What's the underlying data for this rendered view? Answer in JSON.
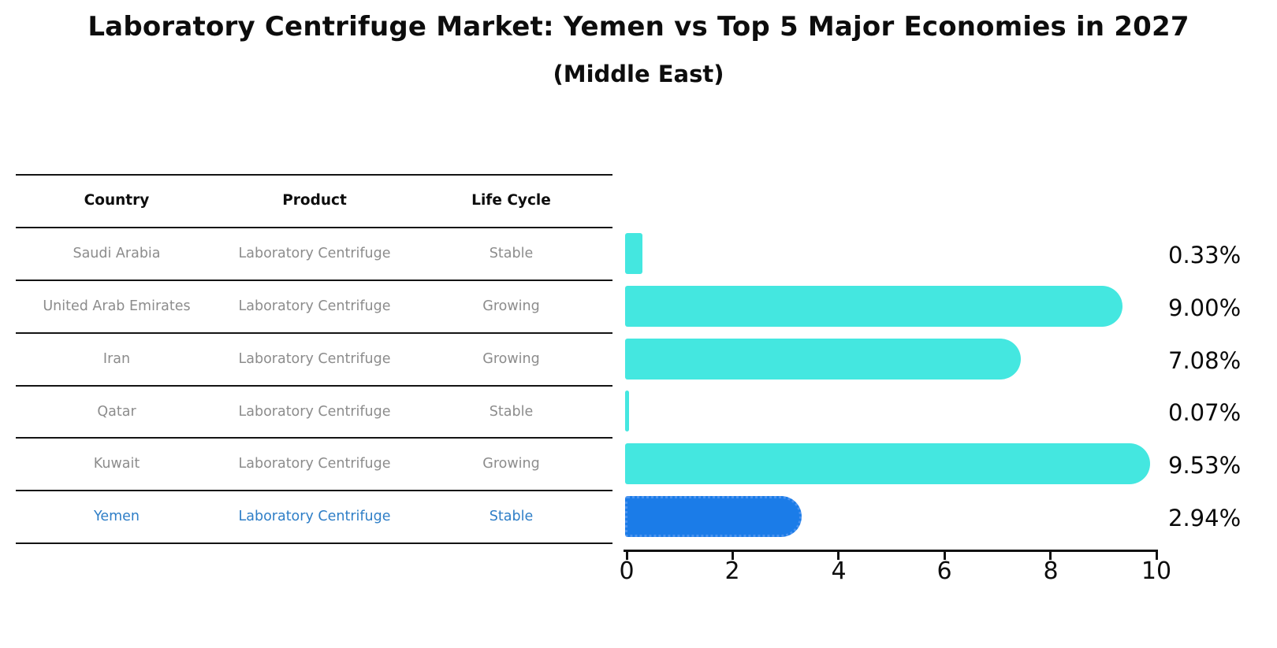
{
  "title": "Laboratory Centrifuge Market: Yemen vs Top 5 Major Economies in 2027",
  "subtitle": "(Middle East)",
  "table": {
    "headers": [
      "Country",
      "Product",
      "Life Cycle"
    ],
    "rows": [
      {
        "country": "Saudi Arabia",
        "product": "Laboratory Centrifuge",
        "life_cycle": "Stable",
        "highlight": false
      },
      {
        "country": "United Arab Emirates",
        "product": "Laboratory Centrifuge",
        "life_cycle": "Growing",
        "highlight": false
      },
      {
        "country": "Iran",
        "product": "Laboratory Centrifuge",
        "life_cycle": "Growing",
        "highlight": false
      },
      {
        "country": "Qatar",
        "product": "Laboratory Centrifuge",
        "life_cycle": "Stable",
        "highlight": false
      },
      {
        "country": "Kuwait",
        "product": "Laboratory Centrifuge",
        "life_cycle": "Growing",
        "highlight": false
      },
      {
        "country": "Yemen",
        "product": "Laboratory Centrifuge",
        "life_cycle": "Stable",
        "highlight": true
      }
    ]
  },
  "chart_data": {
    "type": "bar",
    "orientation": "horizontal",
    "title": "Laboratory Centrifuge Market: Yemen vs Top 5 Major Economies in 2027",
    "subtitle": "(Middle East)",
    "categories": [
      "Saudi Arabia",
      "United Arab Emirates",
      "Iran",
      "Qatar",
      "Kuwait",
      "Yemen"
    ],
    "values": [
      0.33,
      9.0,
      7.08,
      0.07,
      9.53,
      2.94
    ],
    "value_labels": [
      "0.33%",
      "9.00%",
      "7.08%",
      "0.07%",
      "9.53%",
      "2.94%"
    ],
    "xlim": [
      0,
      10
    ],
    "xticks": [
      "0",
      "2",
      "4",
      "6",
      "8",
      "10"
    ],
    "grid": false,
    "legend": false,
    "highlight_index": 5,
    "bar_color": "#44e7e0",
    "highlight_bar_color": "#1b7ce8",
    "highlight_text_color": "#2e7ec7"
  }
}
